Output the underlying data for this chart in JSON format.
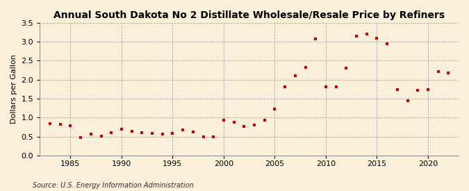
{
  "title": "Annual South Dakota No 2 Distillate Wholesale/Resale Price by Refiners",
  "ylabel": "Dollars per Gallon",
  "source": "Source: U.S. Energy Information Administration",
  "background_color": "#faefd8",
  "marker_color": "#cc0000",
  "years": [
    1983,
    1984,
    1985,
    1986,
    1987,
    1988,
    1989,
    1990,
    1991,
    1992,
    1993,
    1994,
    1995,
    1996,
    1997,
    1998,
    1999,
    2000,
    2001,
    2002,
    2003,
    2004,
    2005,
    2006,
    2007,
    2008,
    2009,
    2010,
    2011,
    2012,
    2013,
    2014,
    2015,
    2016,
    2017,
    2018,
    2019,
    2020,
    2021,
    2022
  ],
  "values": [
    0.84,
    0.82,
    0.79,
    0.48,
    0.56,
    0.51,
    0.61,
    0.7,
    0.63,
    0.6,
    0.58,
    0.57,
    0.58,
    0.67,
    0.62,
    0.5,
    0.49,
    0.93,
    0.87,
    0.76,
    0.8,
    0.93,
    1.22,
    1.81,
    2.11,
    2.33,
    3.08,
    1.82,
    1.82,
    2.3,
    3.15,
    3.2,
    3.1,
    2.95,
    1.73,
    1.45,
    1.72,
    1.74,
    2.22,
    2.18
  ],
  "ylim": [
    0.0,
    3.5
  ],
  "yticks": [
    0.0,
    0.5,
    1.0,
    1.5,
    2.0,
    2.5,
    3.0,
    3.5
  ],
  "xticks": [
    1985,
    1990,
    1995,
    2000,
    2005,
    2010,
    2015,
    2020
  ],
  "xlim": [
    1982,
    2023
  ]
}
